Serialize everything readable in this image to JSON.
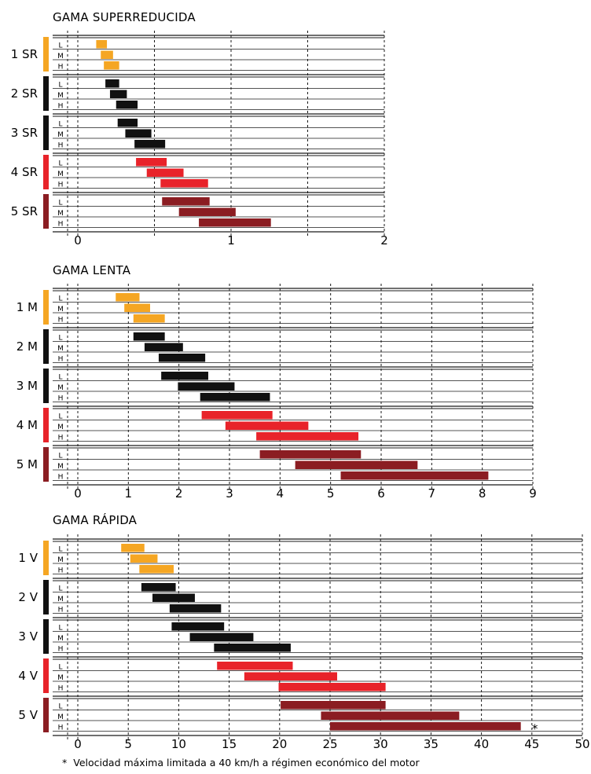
{
  "colors": {
    "orange": "#f5a623",
    "black": "#111111",
    "red": "#e8232a",
    "darkred": "#8b1d22",
    "grid": "#1a1a1a"
  },
  "chart_data": [
    {
      "type": "range-bar",
      "title": "GAMA SUPERREDUCIDA",
      "xlim": [
        0,
        2
      ],
      "xticks": [
        0,
        1,
        2
      ],
      "gridlines": [
        0,
        0.5,
        1,
        1.5,
        2
      ],
      "levels": [
        "L",
        "M",
        "H"
      ],
      "groups": [
        {
          "label": "1 SR",
          "color": "orange",
          "bars": [
            [
              0.12,
              0.19
            ],
            [
              0.15,
              0.23
            ],
            [
              0.17,
              0.27
            ]
          ]
        },
        {
          "label": "2 SR",
          "color": "black",
          "bars": [
            [
              0.18,
              0.27
            ],
            [
              0.21,
              0.32
            ],
            [
              0.25,
              0.39
            ]
          ]
        },
        {
          "label": "3 SR",
          "color": "black",
          "bars": [
            [
              0.26,
              0.39
            ],
            [
              0.31,
              0.48
            ],
            [
              0.37,
              0.57
            ]
          ]
        },
        {
          "label": "4 SR",
          "color": "red",
          "bars": [
            [
              0.38,
              0.58
            ],
            [
              0.45,
              0.69
            ],
            [
              0.54,
              0.85
            ]
          ]
        },
        {
          "label": "5 SR",
          "color": "darkred",
          "bars": [
            [
              0.55,
              0.86
            ],
            [
              0.66,
              1.03
            ],
            [
              0.79,
              1.26
            ]
          ]
        }
      ]
    },
    {
      "type": "range-bar",
      "title": "GAMA LENTA",
      "xlim": [
        0,
        9
      ],
      "xticks": [
        0,
        1,
        2,
        3,
        4,
        5,
        6,
        7,
        8,
        9
      ],
      "gridlines": [
        0,
        1,
        2,
        3,
        4,
        5,
        6,
        7,
        8,
        9
      ],
      "levels": [
        "L",
        "M",
        "H"
      ],
      "groups": [
        {
          "label": "1 M",
          "color": "orange",
          "bars": [
            [
              0.75,
              1.22
            ],
            [
              0.92,
              1.43
            ],
            [
              1.1,
              1.72
            ]
          ]
        },
        {
          "label": "2 M",
          "color": "black",
          "bars": [
            [
              1.1,
              1.72
            ],
            [
              1.32,
              2.08
            ],
            [
              1.6,
              2.52
            ]
          ]
        },
        {
          "label": "3 M",
          "color": "black",
          "bars": [
            [
              1.65,
              2.58
            ],
            [
              1.98,
              3.1
            ],
            [
              2.42,
              3.8
            ]
          ]
        },
        {
          "label": "4 M",
          "color": "red",
          "bars": [
            [
              2.45,
              3.85
            ],
            [
              2.92,
              4.56
            ],
            [
              3.53,
              5.55
            ]
          ]
        },
        {
          "label": "5 M",
          "color": "darkred",
          "bars": [
            [
              3.6,
              5.6
            ],
            [
              4.3,
              6.72
            ],
            [
              5.2,
              8.12
            ]
          ]
        }
      ]
    },
    {
      "type": "range-bar",
      "title": "GAMA RÁPIDA",
      "xlim": [
        0,
        50
      ],
      "xticks": [
        0,
        5,
        10,
        15,
        20,
        25,
        30,
        35,
        40,
        45,
        50
      ],
      "gridlines": [
        0,
        5,
        10,
        15,
        20,
        25,
        30,
        35,
        40,
        45,
        50
      ],
      "levels": [
        "L",
        "M",
        "H"
      ],
      "groups": [
        {
          "label": "1 V",
          "color": "orange",
          "bars": [
            [
              4.3,
              6.6
            ],
            [
              5.2,
              7.9
            ],
            [
              6.1,
              9.5
            ]
          ]
        },
        {
          "label": "2 V",
          "color": "black",
          "bars": [
            [
              6.3,
              9.7
            ],
            [
              7.4,
              11.6
            ],
            [
              9.1,
              14.2
            ]
          ]
        },
        {
          "label": "3 V",
          "color": "black",
          "bars": [
            [
              9.3,
              14.5
            ],
            [
              11.1,
              17.4
            ],
            [
              13.5,
              21.1
            ]
          ]
        },
        {
          "label": "4 V",
          "color": "red",
          "bars": [
            [
              13.8,
              21.3
            ],
            [
              16.5,
              25.7
            ],
            [
              19.9,
              30.5
            ]
          ]
        },
        {
          "label": "5 V",
          "color": "darkred",
          "bars": [
            [
              20.1,
              30.5
            ],
            [
              24.1,
              37.8
            ],
            [
              25.0,
              43.9
            ]
          ]
        }
      ],
      "annotation": "*"
    }
  ],
  "footnote": {
    "marker": "*",
    "text": "Velocidad máxima limitada a 40 km/h a régimen económico del motor"
  }
}
